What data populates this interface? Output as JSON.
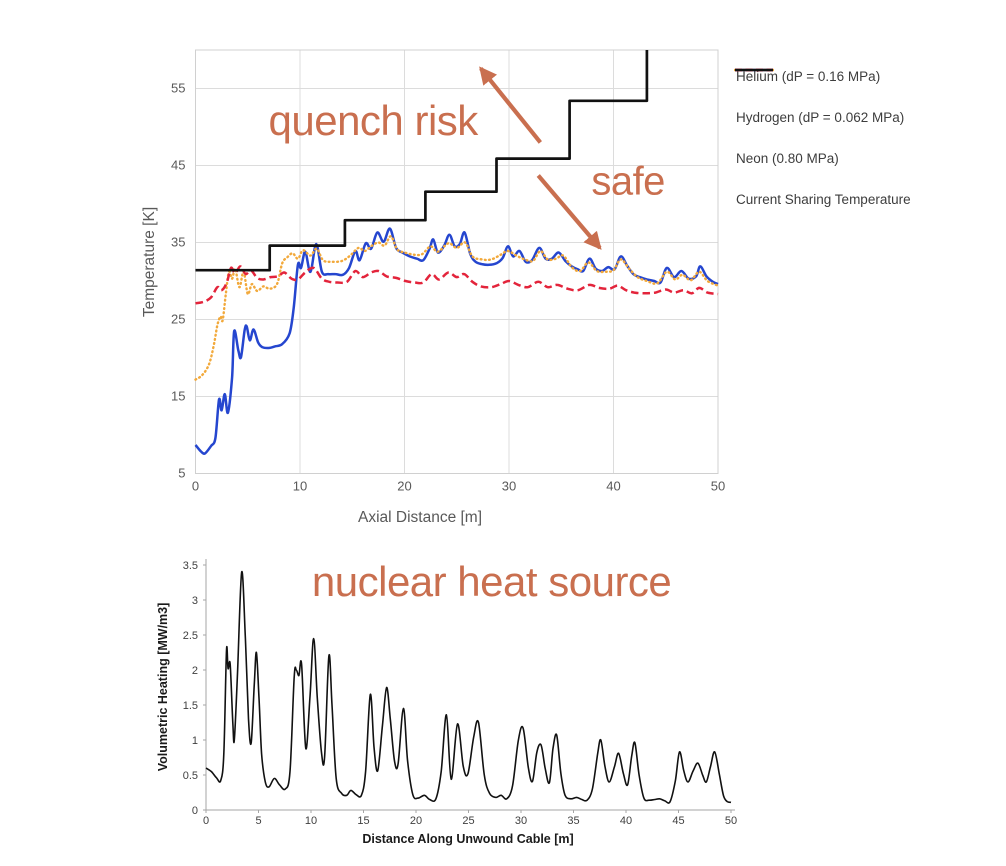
{
  "annotation_color": "#c96f4f",
  "chart_data": [
    {
      "name": "coolant-temperature-profile",
      "type": "line",
      "xlabel": "Axial Distance [m]",
      "ylabel": "Temperature [K]",
      "xlim": [
        0,
        50
      ],
      "ylim": [
        5,
        60
      ],
      "xticks": [
        0,
        10,
        20,
        30,
        40,
        50
      ],
      "yticks": [
        5,
        15,
        25,
        35,
        45,
        55
      ],
      "grid": true,
      "legend_position": "right",
      "legend": [
        {
          "label": "Helium (dP = 0.16 MPa)",
          "color": "#2546cf",
          "style": "solid"
        },
        {
          "label": "Hydrogen (dP = 0.062 MPa)",
          "color": "#f2a93b",
          "style": "dotted"
        },
        {
          "label": "Neon (0.80 MPa)",
          "color": "#e3243b",
          "style": "dashed"
        },
        {
          "label": "Current Sharing Temperature",
          "color": "#111111",
          "style": "solid"
        }
      ],
      "series": [
        {
          "name": "helium",
          "color": "#2546cf",
          "style": "solid",
          "width": 2.5,
          "smooth": true,
          "x": [
            0,
            0.5,
            0.9,
            1.5,
            1.9,
            2.25,
            2.5,
            2.8,
            3.1,
            3.5,
            3.7,
            4.1,
            4.35,
            4.7,
            4.9,
            5.2,
            5.55,
            6.0,
            6.4,
            7.0,
            7.6,
            8.3,
            9.0,
            9.4,
            9.8,
            10.1,
            10.5,
            11.0,
            11.55,
            12.1,
            12.7,
            13.4,
            14.1,
            14.7,
            15.3,
            15.7,
            16.3,
            16.8,
            17.4,
            18.0,
            18.6,
            19.2,
            19.8,
            20.5,
            21.2,
            21.8,
            22.4,
            22.75,
            23.2,
            23.8,
            24.3,
            24.8,
            25.3,
            25.75,
            26.3,
            26.8,
            27.4,
            28.1,
            28.8,
            29.4,
            29.9,
            30.4,
            31.0,
            31.6,
            32.2,
            32.9,
            33.5,
            34.1,
            34.75,
            35.4,
            36.0,
            36.6,
            37.1,
            37.7,
            38.3,
            38.9,
            39.5,
            40.1,
            40.7,
            41.3,
            41.9,
            42.5,
            43.2,
            43.9,
            44.5,
            45.1,
            45.8,
            46.5,
            47.2,
            47.9,
            48.3,
            48.9,
            49.5,
            50
          ],
          "y": [
            8.7,
            7.9,
            7.6,
            8.6,
            9.6,
            14.6,
            13.2,
            15.3,
            12.9,
            17.5,
            23.5,
            21.0,
            20.1,
            23.6,
            24.1,
            22.3,
            23.7,
            22.0,
            21.4,
            21.3,
            21.5,
            21.8,
            23.2,
            26.5,
            32.1,
            31.7,
            33.8,
            31.2,
            34.8,
            31.2,
            30.9,
            30.9,
            30.8,
            31.7,
            33.9,
            32.7,
            34.9,
            34.2,
            36.3,
            35.1,
            36.8,
            34.3,
            33.7,
            33.2,
            32.9,
            32.7,
            34.2,
            35.4,
            33.7,
            34.6,
            36.0,
            34.5,
            34.8,
            36.3,
            33.5,
            32.5,
            32.2,
            32.1,
            32.3,
            33.0,
            34.5,
            33.2,
            33.9,
            32.5,
            32.7,
            34.3,
            32.9,
            32.9,
            33.7,
            32.6,
            31.9,
            31.5,
            31.3,
            32.9,
            31.6,
            31.3,
            31.8,
            31.5,
            33.2,
            32.0,
            30.9,
            30.5,
            30.2,
            30.0,
            29.8,
            31.7,
            30.5,
            31.3,
            30.3,
            30.6,
            31.9,
            30.6,
            29.9,
            29.6
          ]
        },
        {
          "name": "hydrogen",
          "color": "#f2a93b",
          "style": "dotted",
          "width": 2.4,
          "smooth": true,
          "x": [
            0,
            0.5,
            1.0,
            1.4,
            1.8,
            2.1,
            2.4,
            2.6,
            2.9,
            3.2,
            3.5,
            3.8,
            4.2,
            4.6,
            5.0,
            5.4,
            5.9,
            6.5,
            7.1,
            7.8,
            8.3,
            8.8,
            9.3,
            9.8,
            10.3,
            11.0,
            11.6,
            12.2,
            13.0,
            14.0,
            14.8,
            15.6,
            16.2,
            16.9,
            17.5,
            18.1,
            18.7,
            19.3,
            20.0,
            21.0,
            21.7,
            22.5,
            23.2,
            24.2,
            25.0,
            25.8,
            26.5,
            27.4,
            28.3,
            29.2,
            29.9,
            30.7,
            31.5,
            32.3,
            33.0,
            33.7,
            34.5,
            35.2,
            36.0,
            36.8,
            37.6,
            38.4,
            39.2,
            40.0,
            40.7,
            41.5,
            42.3,
            43.2,
            44.2,
            45.1,
            45.9,
            46.6,
            47.4,
            48.2,
            49.0,
            50
          ],
          "y": [
            17.2,
            17.6,
            18.4,
            19.6,
            22.0,
            24.3,
            25.4,
            24.9,
            28.3,
            31.2,
            30.3,
            31.6,
            29.2,
            31.2,
            28.3,
            29.6,
            28.7,
            29.3,
            29.0,
            29.6,
            32.3,
            33.1,
            33.6,
            32.9,
            34.0,
            33.3,
            34.2,
            32.7,
            32.5,
            32.6,
            33.3,
            34.3,
            33.9,
            34.6,
            35.0,
            34.6,
            35.8,
            34.1,
            33.7,
            33.4,
            33.5,
            34.5,
            33.8,
            34.9,
            34.3,
            35.0,
            33.2,
            32.8,
            32.8,
            33.4,
            33.9,
            33.3,
            32.8,
            32.6,
            33.9,
            32.8,
            32.9,
            33.3,
            31.8,
            31.3,
            32.4,
            31.3,
            31.2,
            31.4,
            32.8,
            31.6,
            30.5,
            30.0,
            29.7,
            31.2,
            30.2,
            30.8,
            30.1,
            31.2,
            30.0,
            29.4
          ]
        },
        {
          "name": "neon",
          "color": "#e3243b",
          "style": "dashed",
          "width": 2.5,
          "smooth": true,
          "x": [
            0,
            0.8,
            1.5,
            2.1,
            2.5,
            3.0,
            3.4,
            3.8,
            4.3,
            4.8,
            5.3,
            5.9,
            6.5,
            7.2,
            7.9,
            8.5,
            9.2,
            9.8,
            10.5,
            11.3,
            12.1,
            12.8,
            13.6,
            14.5,
            15.3,
            16.0,
            16.8,
            17.5,
            18.3,
            19.2,
            20.1,
            21.0,
            21.8,
            22.6,
            23.3,
            24.2,
            25.0,
            25.7,
            26.5,
            27.3,
            28.3,
            29.2,
            30.0,
            30.9,
            31.8,
            32.8,
            33.7,
            34.6,
            35.6,
            36.6,
            37.7,
            38.6,
            39.6,
            40.4,
            41.2,
            42.0,
            43.0,
            44.0,
            45.0,
            45.8,
            46.7,
            47.5,
            48.2,
            49.0,
            50
          ],
          "y": [
            27.1,
            27.3,
            27.9,
            29.2,
            28.8,
            29.8,
            31.7,
            31.0,
            31.9,
            30.9,
            31.4,
            30.4,
            30.2,
            30.5,
            30.6,
            31.1,
            30.3,
            30.2,
            31.1,
            31.7,
            30.3,
            29.9,
            29.8,
            29.9,
            31.3,
            30.5,
            31.1,
            31.3,
            30.6,
            30.4,
            30.0,
            29.8,
            29.8,
            30.9,
            30.2,
            31.1,
            30.5,
            30.9,
            29.9,
            29.3,
            29.2,
            29.6,
            30.0,
            29.5,
            29.2,
            29.9,
            29.2,
            29.5,
            29.0,
            28.8,
            29.5,
            29.1,
            29.0,
            29.4,
            28.8,
            28.5,
            28.4,
            28.5,
            28.9,
            28.5,
            28.8,
            28.4,
            29.1,
            28.5,
            28.3
          ]
        },
        {
          "name": "current-sharing-temperature",
          "color": "#111111",
          "style": "solid",
          "width": 2.7,
          "smooth": false,
          "x": [
            0,
            7.1,
            7.1,
            14.3,
            14.3,
            22.0,
            22.0,
            28.8,
            28.8,
            35.8,
            35.8,
            43.2,
            43.2
          ],
          "y": [
            31.4,
            31.4,
            34.6,
            34.6,
            37.9,
            37.9,
            41.6,
            41.6,
            45.9,
            45.9,
            53.4,
            53.4,
            60.0
          ]
        }
      ],
      "annotations": [
        {
          "kind": "text",
          "text": "quench risk",
          "x": 17.0,
          "y": 50.8
        },
        {
          "kind": "text",
          "text": "safe",
          "x": 41.4,
          "y": 42.9
        },
        {
          "kind": "arrow",
          "x1": 33.0,
          "y1": 48.0,
          "x2": 27.3,
          "y2": 57.6
        },
        {
          "kind": "arrow",
          "x1": 32.8,
          "y1": 43.7,
          "x2": 38.7,
          "y2": 34.3
        }
      ]
    },
    {
      "name": "nuclear-heating-profile",
      "type": "line",
      "xlabel": "Distance Along Unwound Cable [m]",
      "ylabel": "Volumetric Heating [MW/m3]",
      "xlim": [
        0,
        50
      ],
      "ylim": [
        0,
        3.5
      ],
      "xticks": [
        0,
        5,
        10,
        15,
        20,
        25,
        30,
        35,
        40,
        45,
        50
      ],
      "yticks": [
        0,
        0.5,
        1,
        1.5,
        2,
        2.5,
        3,
        3.5
      ],
      "grid": false,
      "series": [
        {
          "name": "volumetric-heating",
          "color": "#111111",
          "style": "solid",
          "width": 1.6,
          "smooth": true,
          "x": [
            0,
            0.5,
            1.0,
            1.4,
            1.7,
            1.95,
            2.1,
            2.3,
            2.55,
            2.7,
            3.0,
            3.4,
            3.75,
            4.05,
            4.3,
            4.6,
            4.8,
            5.05,
            5.3,
            5.65,
            6.0,
            6.5,
            7.0,
            7.55,
            8.0,
            8.4,
            8.6,
            8.85,
            9.1,
            9.5,
            9.9,
            10.25,
            10.6,
            11.0,
            11.3,
            11.7,
            12.0,
            12.4,
            12.9,
            13.4,
            13.8,
            14.3,
            14.8,
            15.2,
            15.65,
            16.0,
            16.35,
            16.8,
            17.2,
            17.55,
            17.95,
            18.3,
            18.8,
            19.2,
            19.7,
            20.2,
            20.8,
            21.3,
            21.9,
            22.4,
            22.9,
            23.35,
            23.95,
            24.5,
            24.95,
            25.5,
            25.95,
            26.5,
            27.0,
            27.6,
            28.1,
            28.65,
            29.2,
            29.75,
            30.2,
            30.7,
            31.1,
            31.5,
            31.9,
            32.3,
            32.7,
            33.05,
            33.4,
            33.8,
            34.2,
            34.75,
            35.3,
            35.8,
            36.3,
            36.8,
            37.3,
            37.6,
            38.0,
            38.4,
            38.9,
            39.3,
            39.75,
            40.15,
            40.55,
            40.85,
            41.25,
            41.7,
            42.2,
            42.75,
            43.2,
            43.7,
            44.2,
            44.7,
            45.1,
            45.5,
            45.9,
            46.4,
            46.85,
            47.3,
            47.65,
            48.05,
            48.45,
            48.9,
            49.3,
            49.65,
            50
          ],
          "y": [
            0.6,
            0.55,
            0.46,
            0.42,
            0.8,
            2.28,
            2.02,
            2.08,
            1.25,
            1.0,
            1.95,
            3.4,
            2.45,
            1.3,
            0.96,
            1.8,
            2.25,
            1.6,
            0.8,
            0.4,
            0.33,
            0.45,
            0.36,
            0.3,
            0.55,
            1.9,
            2.0,
            1.92,
            2.08,
            0.88,
            1.6,
            2.45,
            1.6,
            0.82,
            0.76,
            2.2,
            1.5,
            0.45,
            0.24,
            0.21,
            0.28,
            0.22,
            0.21,
            0.55,
            1.65,
            0.9,
            0.56,
            1.2,
            1.75,
            1.3,
            0.7,
            0.66,
            1.45,
            0.7,
            0.22,
            0.17,
            0.21,
            0.15,
            0.16,
            0.55,
            1.36,
            0.44,
            1.23,
            0.62,
            0.52,
            1.05,
            1.25,
            0.5,
            0.24,
            0.18,
            0.21,
            0.16,
            0.35,
            1.0,
            1.17,
            0.6,
            0.41,
            0.82,
            0.93,
            0.6,
            0.39,
            0.88,
            1.07,
            0.52,
            0.21,
            0.16,
            0.18,
            0.15,
            0.14,
            0.3,
            0.8,
            1.0,
            0.62,
            0.4,
            0.62,
            0.81,
            0.52,
            0.36,
            0.78,
            0.96,
            0.5,
            0.17,
            0.14,
            0.15,
            0.16,
            0.13,
            0.12,
            0.42,
            0.83,
            0.56,
            0.4,
            0.56,
            0.67,
            0.5,
            0.4,
            0.62,
            0.83,
            0.5,
            0.2,
            0.12,
            0.11
          ]
        }
      ],
      "annotations": [
        {
          "kind": "text",
          "text": "nuclear heat source",
          "x": 27.2,
          "y": 3.26
        }
      ]
    }
  ]
}
